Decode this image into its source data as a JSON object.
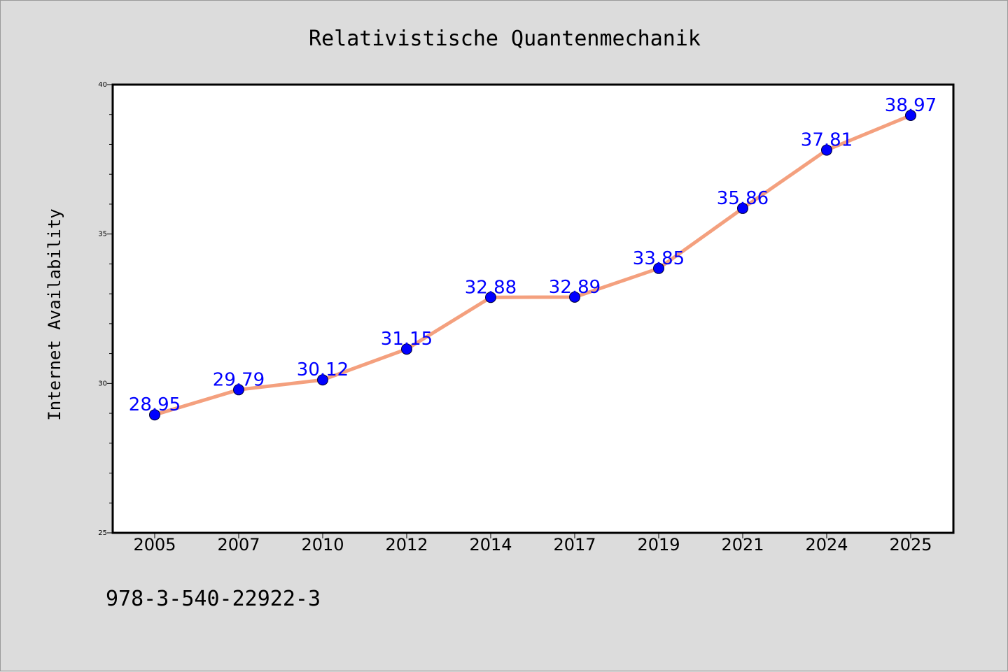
{
  "chart_data": {
    "type": "line",
    "title": "Relativistische Quantenmechanik",
    "xlabel": "",
    "ylabel": "Internet Availability",
    "categories": [
      "2005",
      "2007",
      "2010",
      "2012",
      "2014",
      "2017",
      "2019",
      "2021",
      "2024",
      "2025"
    ],
    "series": [
      {
        "values": [
          28.95,
          29.79,
          30.12,
          31.15,
          32.88,
          32.89,
          33.85,
          35.86,
          37.81,
          38.97
        ],
        "labels": [
          "28.95",
          "29.79",
          "30.12",
          "31.15",
          "32.88",
          "32.89",
          "33.85",
          "35.86",
          "37.81",
          "38.97"
        ]
      }
    ],
    "ylim": [
      25,
      40
    ],
    "yticks": [
      "25",
      "30",
      "35",
      "40"
    ],
    "grid": false,
    "line_color": "#f4a07e",
    "marker_color": "#0000ff",
    "label_color": "#0000ff"
  },
  "footer": {
    "isbn": "978-3-540-22922-3"
  },
  "colors": {
    "background": "#dcdcdc",
    "plot_background": "#ffffff"
  }
}
